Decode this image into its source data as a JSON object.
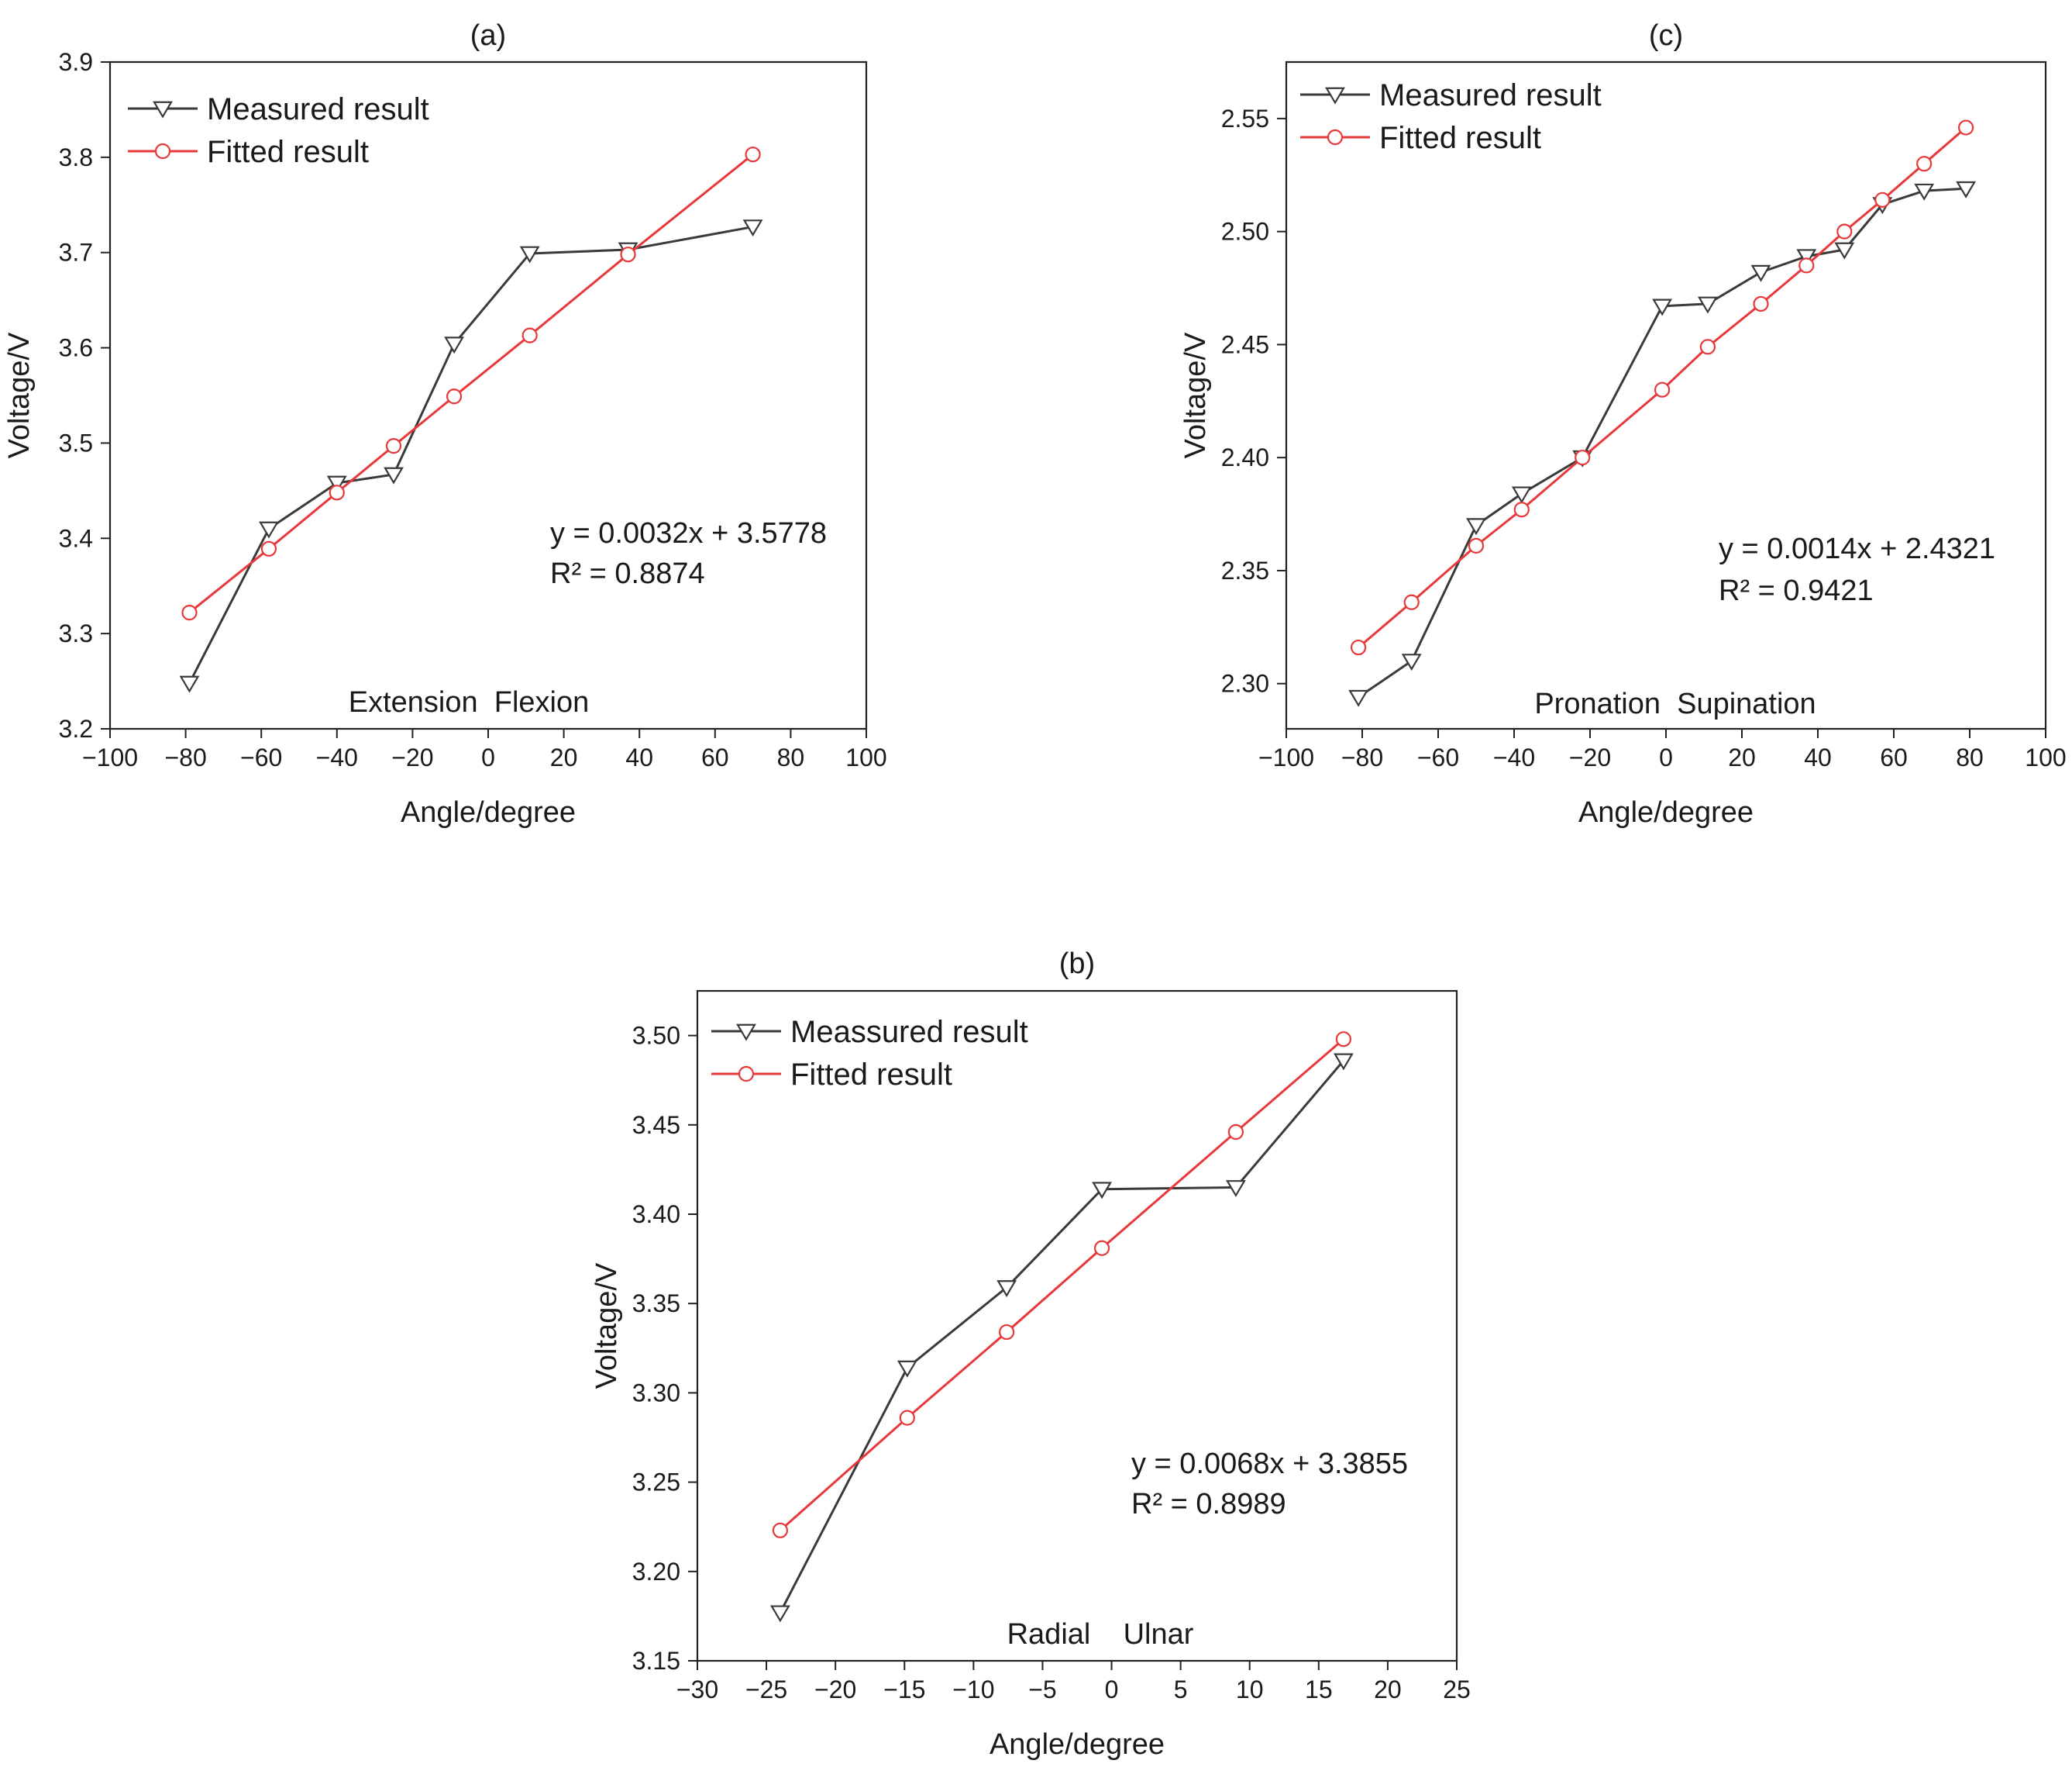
{
  "chart_data": [
    {
      "id": "a",
      "type": "line",
      "title": "(a)",
      "xlabel": "Angle/degree",
      "ylabel": "Voltage/V",
      "xlim": [
        -100,
        100
      ],
      "ylim": [
        3.2,
        3.9
      ],
      "xticks": [
        -100,
        -80,
        -60,
        -40,
        -20,
        0,
        20,
        40,
        60,
        80,
        100
      ],
      "yticks": [
        3.2,
        3.3,
        3.4,
        3.5,
        3.6,
        3.7,
        3.8,
        3.9
      ],
      "xtick_labels": [
        "−100",
        "−80",
        "−60",
        "−40",
        "−20",
        "0",
        "20",
        "40",
        "60",
        "80",
        "100"
      ],
      "ytick_labels": [
        "3.2",
        "3.3",
        "3.4",
        "3.5",
        "3.6",
        "3.7",
        "3.8",
        "3.9"
      ],
      "legend": [
        "Measured result",
        "Fitted result"
      ],
      "legend_position": "top-left",
      "equation": "y = 0.0032x + 3.5778",
      "r2": "R² = 0.8874",
      "motion_label": "Extension  Flexion",
      "series": [
        {
          "name": "Measured result",
          "color": "#3a3a3a",
          "marker": "triangle-down",
          "x": [
            -79,
            -58,
            -40,
            -25,
            -9,
            11,
            37,
            70
          ],
          "y": [
            3.248,
            3.41,
            3.458,
            3.467,
            3.604,
            3.699,
            3.703,
            3.727
          ]
        },
        {
          "name": "Fitted result",
          "color": "#e8393a",
          "marker": "circle",
          "x": [
            -79,
            -58,
            -40,
            -25,
            -9,
            11,
            37,
            70
          ],
          "y": [
            3.322,
            3.389,
            3.448,
            3.497,
            3.549,
            3.613,
            3.698,
            3.803
          ]
        }
      ]
    },
    {
      "id": "c",
      "type": "line",
      "title": "(c)",
      "xlabel": "Angle/degree",
      "ylabel": "Voltage/V",
      "xlim": [
        -100,
        100
      ],
      "ylim": [
        2.28,
        2.575
      ],
      "xticks": [
        -100,
        -80,
        -60,
        -40,
        -20,
        0,
        20,
        40,
        60,
        80,
        100
      ],
      "yticks": [
        2.3,
        2.35,
        2.4,
        2.45,
        2.5,
        2.55
      ],
      "xtick_labels": [
        "−100",
        "−80",
        "−60",
        "−40",
        "−20",
        "0",
        "20",
        "40",
        "60",
        "80",
        "100"
      ],
      "ytick_labels": [
        "2.30",
        "2.35",
        "2.40",
        "2.45",
        "2.50",
        "2.55"
      ],
      "legend": [
        "Measured result",
        "Fitted result"
      ],
      "legend_position": "top-left",
      "equation": "y = 0.0014x + 2.4321",
      "r2": "R² = 0.9421",
      "motion_label": "Pronation  Supination",
      "series": [
        {
          "name": "Measured result",
          "color": "#3a3a3a",
          "marker": "triangle-down",
          "x": [
            -81,
            -67,
            -50,
            -38,
            -22,
            -1,
            11,
            25,
            37,
            47,
            57,
            68,
            79
          ],
          "y": [
            2.294,
            2.31,
            2.37,
            2.384,
            2.4,
            2.467,
            2.468,
            2.482,
            2.489,
            2.492,
            2.512,
            2.518,
            2.519
          ]
        },
        {
          "name": "Fitted result",
          "color": "#e8393a",
          "marker": "circle",
          "x": [
            -81,
            -67,
            -50,
            -38,
            -22,
            -1,
            11,
            25,
            37,
            47,
            57,
            68,
            79
          ],
          "y": [
            2.316,
            2.336,
            2.361,
            2.377,
            2.4,
            2.43,
            2.449,
            2.468,
            2.485,
            2.5,
            2.514,
            2.53,
            2.546
          ]
        }
      ]
    },
    {
      "id": "b",
      "type": "line",
      "title": "(b)",
      "xlabel": "Angle/degree",
      "ylabel": "Voltage/V",
      "xlim": [
        -30,
        25
      ],
      "ylim": [
        3.15,
        3.525
      ],
      "xticks": [
        -30,
        -25,
        -20,
        -15,
        -10,
        -5,
        0,
        5,
        10,
        15,
        20,
        25
      ],
      "yticks": [
        3.15,
        3.2,
        3.25,
        3.3,
        3.35,
        3.4,
        3.45,
        3.5
      ],
      "xtick_labels": [
        "−30",
        "−25",
        "−20",
        "−15",
        "−10",
        "−5",
        "0",
        "5",
        "10",
        "15",
        "20",
        "25"
      ],
      "ytick_labels": [
        "3.15",
        "3.20",
        "3.25",
        "3.30",
        "3.35",
        "3.40",
        "3.45",
        "3.50"
      ],
      "legend": [
        "Meassured result",
        "Fitted result"
      ],
      "legend_position": "top-left",
      "equation": "y  = 0.0068x + 3.3855",
      "r2": "R² = 0.8989",
      "motion_label": "Radial    Ulnar",
      "series": [
        {
          "name": "Meassured result",
          "color": "#3a3a3a",
          "marker": "triangle-down",
          "x": [
            -24,
            -14.8,
            -7.6,
            -0.7,
            9,
            16.8
          ],
          "y": [
            3.177,
            3.314,
            3.359,
            3.414,
            3.415,
            3.486
          ]
        },
        {
          "name": "Fitted result",
          "color": "#e8393a",
          "marker": "circle",
          "x": [
            -24,
            -14.8,
            -7.6,
            -0.7,
            9,
            16.8
          ],
          "y": [
            3.223,
            3.286,
            3.334,
            3.381,
            3.446,
            3.498
          ]
        }
      ]
    }
  ]
}
